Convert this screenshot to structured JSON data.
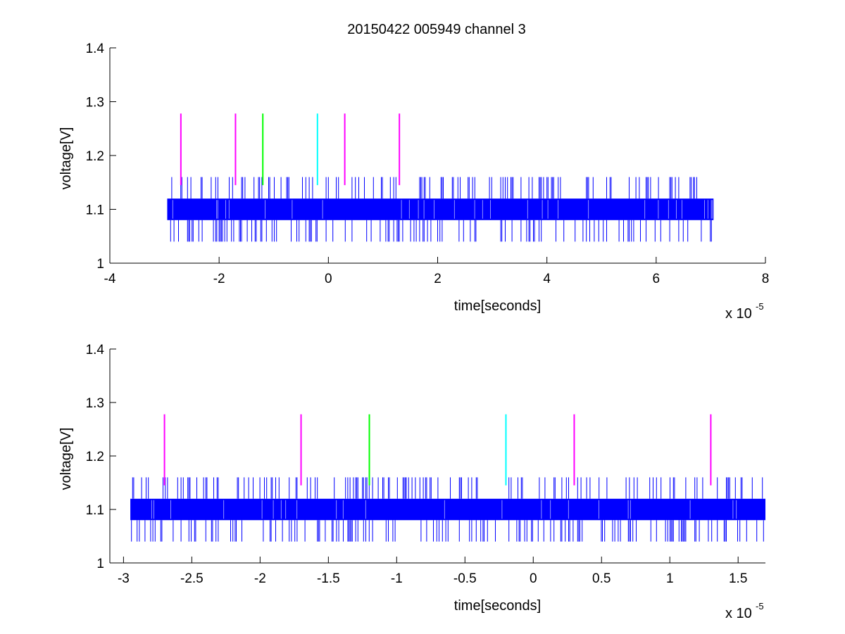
{
  "figure_title": "20150422 005949 channel 3",
  "chart_data": [
    {
      "type": "line",
      "title": "20150422 005949 channel 3",
      "xlabel": "time[seconds]",
      "ylabel": "voltage[V]",
      "x_multiplier_label": "x 10",
      "x_multiplier_exponent": "-5",
      "xlim": [
        -4e-05,
        8e-05
      ],
      "ylim": [
        1,
        1.4
      ],
      "x_ticks": [
        -4e-05,
        -2e-05,
        0,
        2e-05,
        4e-05,
        6e-05,
        8e-05
      ],
      "x_tick_labels": [
        "-4",
        "-2",
        "0",
        "2",
        "4",
        "6",
        "8"
      ],
      "y_ticks": [
        1,
        1.1,
        1.2,
        1.3,
        1.4
      ],
      "y_tick_labels": [
        "1",
        "1.1",
        "1.2",
        "1.3",
        "1.4"
      ],
      "grid": false,
      "signal": {
        "color": "#0000ff",
        "x_start": -2.95e-05,
        "x_end": 7.05e-05,
        "band_low": 1.08,
        "band_high": 1.12,
        "spike_high": 1.16,
        "spike_low": 1.04
      },
      "markers": [
        {
          "x": -2.7e-05,
          "y_low": 1.145,
          "y_high": 1.278,
          "color": "#ff00ff"
        },
        {
          "x": -1.7e-05,
          "y_low": 1.145,
          "y_high": 1.278,
          "color": "#ff00ff"
        },
        {
          "x": -1.2e-05,
          "y_low": 1.145,
          "y_high": 1.278,
          "color": "#00ff00"
        },
        {
          "x": -2e-06,
          "y_low": 1.145,
          "y_high": 1.278,
          "color": "#00ffff"
        },
        {
          "x": 3e-06,
          "y_low": 1.145,
          "y_high": 1.278,
          "color": "#ff00ff"
        },
        {
          "x": 1.3e-05,
          "y_low": 1.145,
          "y_high": 1.278,
          "color": "#ff00ff"
        }
      ]
    },
    {
      "type": "line",
      "title": "",
      "xlabel": "time[seconds]",
      "ylabel": "voltage[V]",
      "x_multiplier_label": "x 10",
      "x_multiplier_exponent": "-5",
      "xlim": [
        -3.1e-05,
        1.7e-05
      ],
      "ylim": [
        1,
        1.4
      ],
      "x_ticks": [
        -3e-05,
        -2.5e-05,
        -2e-05,
        -1.5e-05,
        -1e-05,
        -5e-06,
        0,
        5e-06,
        1e-05,
        1.5e-05
      ],
      "x_tick_labels": [
        "-3",
        "-2.5",
        "-2",
        "-1.5",
        "-1",
        "-0.5",
        "0",
        "0.5",
        "1",
        "1.5"
      ],
      "y_ticks": [
        1,
        1.1,
        1.2,
        1.3,
        1.4
      ],
      "y_tick_labels": [
        "1",
        "1.1",
        "1.2",
        "1.3",
        "1.4"
      ],
      "grid": false,
      "signal": {
        "color": "#0000ff",
        "x_start": -2.95e-05,
        "x_end": 1.7e-05,
        "band_low": 1.08,
        "band_high": 1.12,
        "spike_high": 1.16,
        "spike_low": 1.04
      },
      "markers": [
        {
          "x": -2.7e-05,
          "y_low": 1.145,
          "y_high": 1.278,
          "color": "#ff00ff"
        },
        {
          "x": -1.7e-05,
          "y_low": 1.145,
          "y_high": 1.278,
          "color": "#ff00ff"
        },
        {
          "x": -1.2e-05,
          "y_low": 1.145,
          "y_high": 1.278,
          "color": "#00ff00"
        },
        {
          "x": -2e-06,
          "y_low": 1.145,
          "y_high": 1.278,
          "color": "#00ffff"
        },
        {
          "x": 3e-06,
          "y_low": 1.145,
          "y_high": 1.278,
          "color": "#ff00ff"
        },
        {
          "x": 1.3e-05,
          "y_low": 1.145,
          "y_high": 1.278,
          "color": "#ff00ff"
        }
      ]
    }
  ]
}
